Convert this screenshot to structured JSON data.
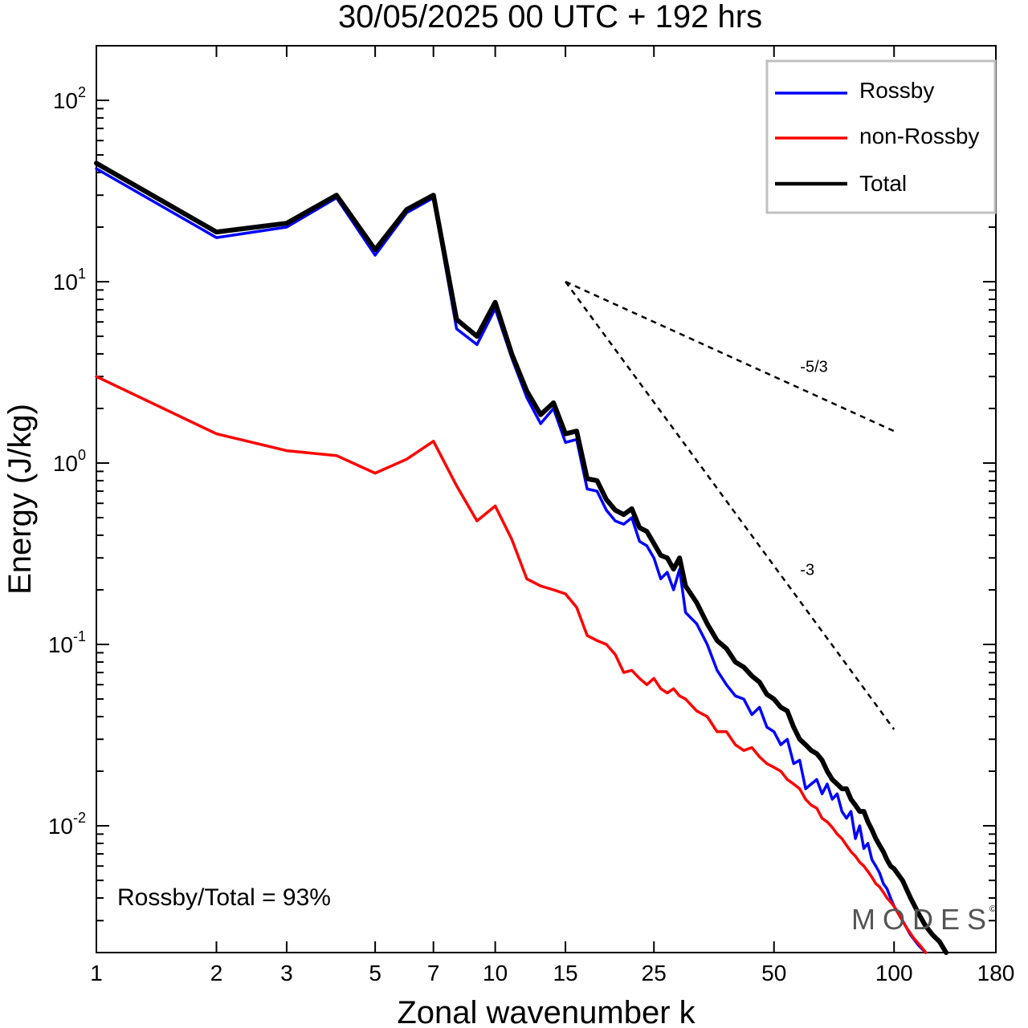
{
  "colors": {
    "rossby": "#0000ff",
    "non_rossby": "#ff0000",
    "total": "#000000"
  },
  "annotation_ratio": "Rossby/Total = 93%",
  "watermark": "MODES",
  "chart_data": {
    "type": "line",
    "title": "30/05/2025  00 UTC  + 192 hrs",
    "xlabel": "Zonal wavenumber k",
    "ylabel": "Energy (J/kg)",
    "xscale": "log",
    "yscale": "log",
    "xlim": [
      1,
      180
    ],
    "ylim": [
      0.002,
      200
    ],
    "xticks": [
      {
        "value": 1,
        "label": "1"
      },
      {
        "value": 2,
        "label": "2"
      },
      {
        "value": 3,
        "label": "3"
      },
      {
        "value": 5,
        "label": "5"
      },
      {
        "value": 7,
        "label": "7"
      },
      {
        "value": 10,
        "label": "10"
      },
      {
        "value": 15,
        "label": "15"
      },
      {
        "value": 25,
        "label": "25"
      },
      {
        "value": 50,
        "label": "50"
      },
      {
        "value": 100,
        "label": "100"
      },
      {
        "value": 180,
        "label": "180"
      }
    ],
    "yticks": [
      {
        "value": 100,
        "base": "10",
        "exp": "2"
      },
      {
        "value": 10,
        "base": "10",
        "exp": "1"
      },
      {
        "value": 1,
        "base": "10",
        "exp": "0"
      },
      {
        "value": 0.1,
        "base": "10",
        "exp": "-1"
      },
      {
        "value": 0.01,
        "base": "10",
        "exp": "-2"
      }
    ],
    "legend": {
      "position": "top-right",
      "entries": [
        "Rossby",
        "non-Rossby",
        "Total"
      ]
    },
    "reference_lines": [
      {
        "label": "-5/3",
        "points": [
          [
            15,
            10
          ],
          [
            100,
            1.5
          ]
        ]
      },
      {
        "label": "-3",
        "points": [
          [
            15,
            10
          ],
          [
            100,
            0.034
          ]
        ]
      }
    ],
    "series": [
      {
        "name": "Rossby",
        "points": [
          [
            1,
            42
          ],
          [
            2,
            17.5
          ],
          [
            3,
            20
          ],
          [
            4,
            29
          ],
          [
            5,
            14
          ],
          [
            6,
            24
          ],
          [
            7,
            29
          ],
          [
            8,
            5.5
          ],
          [
            9,
            4.5
          ],
          [
            10,
            7.1
          ],
          [
            11,
            3.8
          ],
          [
            12,
            2.3
          ],
          [
            13,
            1.65
          ],
          [
            14,
            2
          ],
          [
            15,
            1.3
          ],
          [
            16,
            1.35
          ],
          [
            17,
            0.72
          ],
          [
            18,
            0.7
          ],
          [
            19,
            0.55
          ],
          [
            20,
            0.48
          ],
          [
            21,
            0.46
          ],
          [
            22,
            0.5
          ],
          [
            23,
            0.37
          ],
          [
            24,
            0.35
          ],
          [
            25,
            0.3
          ],
          [
            26,
            0.23
          ],
          [
            27,
            0.25
          ],
          [
            28,
            0.2
          ],
          [
            29,
            0.26
          ],
          [
            30,
            0.15
          ],
          [
            32,
            0.13
          ],
          [
            34,
            0.1
          ],
          [
            36,
            0.072
          ],
          [
            38,
            0.06
          ],
          [
            40,
            0.052
          ],
          [
            42,
            0.05
          ],
          [
            44,
            0.041
          ],
          [
            46,
            0.045
          ],
          [
            48,
            0.035
          ],
          [
            50,
            0.033
          ],
          [
            52,
            0.028
          ],
          [
            54,
            0.03
          ],
          [
            56,
            0.022
          ],
          [
            58,
            0.023
          ],
          [
            60,
            0.016
          ],
          [
            62,
            0.017
          ],
          [
            64,
            0.018
          ],
          [
            66,
            0.015
          ],
          [
            68,
            0.017
          ],
          [
            70,
            0.014
          ],
          [
            72,
            0.015
          ],
          [
            74,
            0.012
          ],
          [
            76,
            0.011
          ],
          [
            78,
            0.012
          ],
          [
            80,
            0.0085
          ],
          [
            82,
            0.01
          ],
          [
            84,
            0.0075
          ],
          [
            86,
            0.008
          ],
          [
            88,
            0.0065
          ],
          [
            90,
            0.006
          ],
          [
            92,
            0.0055
          ],
          [
            94,
            0.0048
          ],
          [
            96,
            0.0045
          ],
          [
            98,
            0.004
          ],
          [
            100,
            0.0036
          ],
          [
            105,
            0.003
          ],
          [
            110,
            0.0025
          ],
          [
            115,
            0.0022
          ],
          [
            120,
            0.002
          ]
        ]
      },
      {
        "name": "non-Rossby",
        "points": [
          [
            1,
            3
          ],
          [
            2,
            1.45
          ],
          [
            3,
            1.17
          ],
          [
            4,
            1.1
          ],
          [
            5,
            0.88
          ],
          [
            6,
            1.05
          ],
          [
            7,
            1.32
          ],
          [
            8,
            0.75
          ],
          [
            9,
            0.48
          ],
          [
            10,
            0.58
          ],
          [
            11,
            0.38
          ],
          [
            12,
            0.23
          ],
          [
            13,
            0.21
          ],
          [
            14,
            0.2
          ],
          [
            15,
            0.19
          ],
          [
            16,
            0.16
          ],
          [
            17,
            0.112
          ],
          [
            18,
            0.105
          ],
          [
            19,
            0.1
          ],
          [
            20,
            0.088
          ],
          [
            21,
            0.07
          ],
          [
            22,
            0.072
          ],
          [
            23,
            0.065
          ],
          [
            24,
            0.06
          ],
          [
            25,
            0.065
          ],
          [
            26,
            0.057
          ],
          [
            27,
            0.054
          ],
          [
            28,
            0.057
          ],
          [
            29,
            0.052
          ],
          [
            30,
            0.05
          ],
          [
            32,
            0.043
          ],
          [
            34,
            0.04
          ],
          [
            36,
            0.033
          ],
          [
            38,
            0.033
          ],
          [
            40,
            0.028
          ],
          [
            42,
            0.026
          ],
          [
            44,
            0.027
          ],
          [
            46,
            0.024
          ],
          [
            48,
            0.022
          ],
          [
            50,
            0.021
          ],
          [
            52,
            0.02
          ],
          [
            54,
            0.018
          ],
          [
            56,
            0.017
          ],
          [
            58,
            0.016
          ],
          [
            60,
            0.014
          ],
          [
            62,
            0.013
          ],
          [
            64,
            0.0125
          ],
          [
            66,
            0.011
          ],
          [
            68,
            0.0105
          ],
          [
            70,
            0.0098
          ],
          [
            72,
            0.009
          ],
          [
            74,
            0.0085
          ],
          [
            76,
            0.0078
          ],
          [
            78,
            0.0072
          ],
          [
            80,
            0.0068
          ],
          [
            82,
            0.0063
          ],
          [
            84,
            0.006
          ],
          [
            86,
            0.0056
          ],
          [
            88,
            0.0052
          ],
          [
            90,
            0.0048
          ],
          [
            92,
            0.0046
          ],
          [
            94,
            0.0043
          ],
          [
            96,
            0.004
          ],
          [
            98,
            0.0038
          ],
          [
            100,
            0.0036
          ],
          [
            104,
            0.0031
          ],
          [
            108,
            0.0027
          ],
          [
            112,
            0.0024
          ],
          [
            116,
            0.0022
          ],
          [
            120,
            0.002
          ]
        ]
      },
      {
        "name": "Total",
        "points": [
          [
            1,
            45
          ],
          [
            2,
            18.8
          ],
          [
            3,
            21
          ],
          [
            4,
            30
          ],
          [
            5,
            15
          ],
          [
            6,
            25
          ],
          [
            7,
            30
          ],
          [
            8,
            6.2
          ],
          [
            9,
            5
          ],
          [
            10,
            7.7
          ],
          [
            11,
            4
          ],
          [
            12,
            2.5
          ],
          [
            13,
            1.85
          ],
          [
            14,
            2.15
          ],
          [
            15,
            1.45
          ],
          [
            16,
            1.5
          ],
          [
            17,
            0.82
          ],
          [
            18,
            0.8
          ],
          [
            19,
            0.63
          ],
          [
            20,
            0.55
          ],
          [
            21,
            0.52
          ],
          [
            22,
            0.56
          ],
          [
            23,
            0.44
          ],
          [
            24,
            0.42
          ],
          [
            25,
            0.36
          ],
          [
            26,
            0.31
          ],
          [
            27,
            0.3
          ],
          [
            28,
            0.26
          ],
          [
            29,
            0.3
          ],
          [
            30,
            0.21
          ],
          [
            32,
            0.17
          ],
          [
            34,
            0.13
          ],
          [
            36,
            0.105
          ],
          [
            38,
            0.095
          ],
          [
            40,
            0.08
          ],
          [
            42,
            0.075
          ],
          [
            44,
            0.067
          ],
          [
            46,
            0.062
          ],
          [
            48,
            0.053
          ],
          [
            50,
            0.05
          ],
          [
            52,
            0.045
          ],
          [
            54,
            0.043
          ],
          [
            56,
            0.035
          ],
          [
            58,
            0.03
          ],
          [
            60,
            0.028
          ],
          [
            62,
            0.026
          ],
          [
            64,
            0.025
          ],
          [
            66,
            0.023
          ],
          [
            68,
            0.02
          ],
          [
            70,
            0.018
          ],
          [
            72,
            0.017
          ],
          [
            74,
            0.016
          ],
          [
            76,
            0.016
          ],
          [
            78,
            0.014
          ],
          [
            80,
            0.013
          ],
          [
            82,
            0.012
          ],
          [
            84,
            0.012
          ],
          [
            86,
            0.0105
          ],
          [
            88,
            0.0095
          ],
          [
            90,
            0.0085
          ],
          [
            92,
            0.0078
          ],
          [
            94,
            0.0072
          ],
          [
            96,
            0.0065
          ],
          [
            98,
            0.006
          ],
          [
            100,
            0.0058
          ],
          [
            105,
            0.005
          ],
          [
            110,
            0.004
          ],
          [
            115,
            0.0033
          ],
          [
            120,
            0.0028
          ],
          [
            125,
            0.0025
          ],
          [
            130,
            0.0023
          ],
          [
            135,
            0.002
          ]
        ]
      }
    ]
  }
}
